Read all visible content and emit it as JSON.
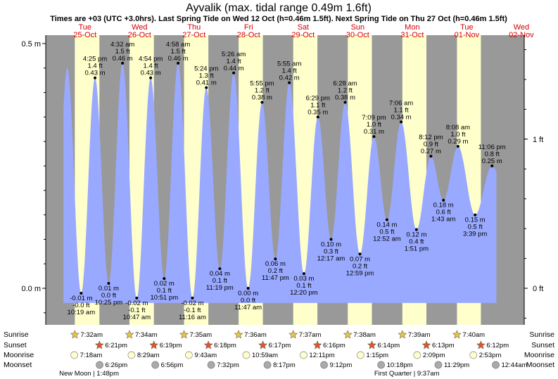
{
  "title": "Ayvalik (max. tidal range 0.49m 1.6ft)",
  "subtitle": "Times are +03 (UTC +3.0hrs). Last Spring Tide on Wed 12 Oct (h=0.46m 1.5ft). Next Spring Tide on Thu 27 Oct (h=0.46m 1.5ft)",
  "colors": {
    "night": "#999999",
    "day": "#ffffcc",
    "tide": "#99a9ff",
    "day_label": "#d60000",
    "sun_icon": "#e8c53a",
    "sunset_icon": "#e0562b",
    "moonrise_icon": "#ffffcc",
    "moonset_icon": "#aaaaaa"
  },
  "chart_data": {
    "type": "area",
    "x_unit": "hours since 25-Oct 00:00",
    "ylim_m": [
      -0.08,
      0.52
    ],
    "y_left_ticks": [
      {
        "value": 0.5,
        "label": "0.5 m"
      },
      {
        "value": 0.0,
        "label": "0.0 m"
      }
    ],
    "y_right_ticks": [
      {
        "value_m": 0.3048,
        "label": "1 ft"
      },
      {
        "value_m": 0.0,
        "label": "0 ft"
      }
    ],
    "days": [
      {
        "dow": "Tue",
        "date": "25-Oct"
      },
      {
        "dow": "Wed",
        "date": "26-Oct"
      },
      {
        "dow": "Thu",
        "date": "27-Oct"
      },
      {
        "dow": "Fri",
        "date": "28-Oct"
      },
      {
        "dow": "Sat",
        "date": "29-Oct"
      },
      {
        "dow": "Sun",
        "date": "30-Oct"
      },
      {
        "dow": "Mon",
        "date": "31-Oct"
      },
      {
        "dow": "Tue",
        "date": "01-Nov"
      },
      {
        "dow": "Wed",
        "date": "02-Nov"
      }
    ],
    "tides": [
      {
        "h": 10.32,
        "m": -0.01,
        "type": "low",
        "lines": [
          "-0.01 m",
          "-0.0 ft",
          "10:19 am"
        ]
      },
      {
        "h": 16.42,
        "m": 0.43,
        "type": "high",
        "lines": [
          "4:25 pm",
          "1.4 ft",
          "0.43 m"
        ]
      },
      {
        "h": 22.42,
        "m": 0.01,
        "type": "low",
        "lines": [
          "0.01 m",
          "0.0 ft",
          "10:25 pm"
        ]
      },
      {
        "h": 28.53,
        "m": 0.46,
        "type": "high",
        "lines": [
          "4:32 am",
          "1.5 ft",
          "0.46 m"
        ]
      },
      {
        "h": 34.78,
        "m": -0.02,
        "type": "low",
        "lines": [
          "-0.02 m",
          "-0.1 ft",
          "10:47 am"
        ]
      },
      {
        "h": 40.9,
        "m": 0.43,
        "type": "high",
        "lines": [
          "4:54 pm",
          "1.4 ft",
          "0.43 m"
        ]
      },
      {
        "h": 46.85,
        "m": 0.02,
        "type": "low",
        "lines": [
          "0.02 m",
          "0.1 ft",
          "10:51 pm"
        ]
      },
      {
        "h": 52.97,
        "m": 0.46,
        "type": "high",
        "lines": [
          "4:58 am",
          "1.5 ft",
          "0.46 m"
        ]
      },
      {
        "h": 59.27,
        "m": -0.02,
        "type": "low",
        "lines": [
          "-0.02 m",
          "-0.1 ft",
          "11:16 am"
        ]
      },
      {
        "h": 65.4,
        "m": 0.41,
        "type": "high",
        "lines": [
          "5:24 pm",
          "1.3 ft",
          "0.41 m"
        ]
      },
      {
        "h": 71.32,
        "m": 0.04,
        "type": "low",
        "lines": [
          "0.04 m",
          "0.1 ft",
          "11:19 pm"
        ]
      },
      {
        "h": 77.43,
        "m": 0.44,
        "type": "high",
        "lines": [
          "5:26 am",
          "1.4 ft",
          "0.44 m"
        ]
      },
      {
        "h": 83.78,
        "m": 0.0,
        "type": "low",
        "lines": [
          "0.00 m",
          "0.0 ft",
          "11:47 am"
        ]
      },
      {
        "h": 89.92,
        "m": 0.38,
        "type": "high",
        "lines": [
          "5:55 pm",
          "1.2 ft",
          "0.38 m"
        ]
      },
      {
        "h": 95.78,
        "m": 0.06,
        "type": "low",
        "lines": [
          "0.06 m",
          "0.2 ft",
          "11:47 pm"
        ]
      },
      {
        "h": 101.92,
        "m": 0.42,
        "type": "high",
        "lines": [
          "5:55 am",
          "1.4 ft",
          "0.42 m"
        ]
      },
      {
        "h": 108.33,
        "m": 0.03,
        "type": "low",
        "lines": [
          "0.03 m",
          "0.1 ft",
          "12:20 pm"
        ]
      },
      {
        "h": 114.48,
        "m": 0.35,
        "type": "high",
        "lines": [
          "6:29 pm",
          "1.1 ft",
          "0.35 m"
        ]
      },
      {
        "h": 120.28,
        "m": 0.1,
        "type": "low",
        "lines": [
          "0.10 m",
          "0.3 ft",
          "12:17 am"
        ]
      },
      {
        "h": 126.47,
        "m": 0.38,
        "type": "high",
        "lines": [
          "6:28 am",
          "1.2 ft",
          "0.38 m"
        ]
      },
      {
        "h": 132.98,
        "m": 0.07,
        "type": "low",
        "lines": [
          "0.07 m",
          "0.2 ft",
          "12:59 pm"
        ]
      },
      {
        "h": 139.15,
        "m": 0.31,
        "type": "high",
        "lines": [
          "7:09 pm",
          "1.0 ft",
          "0.31 m"
        ]
      },
      {
        "h": 144.87,
        "m": 0.14,
        "type": "low",
        "lines": [
          "0.14 m",
          "0.5 ft",
          "12:52 am"
        ]
      },
      {
        "h": 151.1,
        "m": 0.34,
        "type": "high",
        "lines": [
          "7:06 am",
          "1.1 ft",
          "0.34 m"
        ]
      },
      {
        "h": 157.85,
        "m": 0.12,
        "type": "low",
        "lines": [
          "0.12 m",
          "0.4 ft",
          "1:51 pm"
        ]
      },
      {
        "h": 164.2,
        "m": 0.27,
        "type": "high",
        "lines": [
          "8:12 pm",
          "0.9 ft",
          "0.27 m"
        ]
      },
      {
        "h": 169.72,
        "m": 0.18,
        "type": "low",
        "lines": [
          "0.18 m",
          "0.6 ft",
          "1:43 am"
        ]
      },
      {
        "h": 176.13,
        "m": 0.29,
        "type": "high",
        "lines": [
          "8:08 am",
          "1.0 ft",
          "0.29 m"
        ]
      },
      {
        "h": 183.65,
        "m": 0.15,
        "type": "low",
        "lines": [
          "0.15 m",
          "0.5 ft",
          "3:39 pm"
        ]
      },
      {
        "h": 191.1,
        "m": 0.25,
        "type": "high",
        "lines": [
          "11:06 pm",
          "0.8 ft",
          "0.25 m"
        ]
      }
    ],
    "sunrise": [
      {
        "h": 7.53,
        "label": "7:32am"
      },
      {
        "h": 31.57,
        "label": "7:34am"
      },
      {
        "h": 55.58,
        "label": "7:35am"
      },
      {
        "h": 79.6,
        "label": "7:36am"
      },
      {
        "h": 103.62,
        "label": "7:37am"
      },
      {
        "h": 127.63,
        "label": "7:38am"
      },
      {
        "h": 151.65,
        "label": "7:39am"
      },
      {
        "h": 175.67,
        "label": "7:40am"
      }
    ],
    "sunset": [
      {
        "h": 18.35,
        "label": "6:21pm"
      },
      {
        "h": 42.32,
        "label": "6:19pm"
      },
      {
        "h": 66.3,
        "label": "6:18pm"
      },
      {
        "h": 90.28,
        "label": "6:17pm"
      },
      {
        "h": 114.27,
        "label": "6:16pm"
      },
      {
        "h": 138.23,
        "label": "6:14pm"
      },
      {
        "h": 162.22,
        "label": "6:13pm"
      },
      {
        "h": 186.2,
        "label": "6:12pm"
      }
    ],
    "moonrise": [
      {
        "h": 7.3,
        "label": "7:18am"
      },
      {
        "h": 32.48,
        "label": "8:29am"
      },
      {
        "h": 57.72,
        "label": "9:43am"
      },
      {
        "h": 82.98,
        "label": "10:59am"
      },
      {
        "h": 108.18,
        "label": "12:11pm"
      },
      {
        "h": 133.25,
        "label": "1:15pm"
      },
      {
        "h": 158.15,
        "label": "2:09pm"
      },
      {
        "h": 182.88,
        "label": "2:53pm"
      }
    ],
    "moonset": [
      {
        "h": 18.43,
        "label": "6:26pm"
      },
      {
        "h": 42.93,
        "label": "6:56pm"
      },
      {
        "h": 67.53,
        "label": "7:32pm"
      },
      {
        "h": 92.28,
        "label": "8:17pm"
      },
      {
        "h": 117.2,
        "label": "9:12pm"
      },
      {
        "h": 142.3,
        "label": "10:18pm"
      },
      {
        "h": 167.48,
        "label": "11:29pm"
      },
      {
        "h": 192.73,
        "label": "12:44am"
      }
    ],
    "moon_phases": [
      {
        "h": 13.8,
        "label": "New Moon | 1:48pm"
      },
      {
        "h": 153.62,
        "label": "First Quarter | 9:37am"
      }
    ],
    "row_labels": [
      "Sunrise",
      "Sunset",
      "Moonrise",
      "Moonset"
    ]
  }
}
